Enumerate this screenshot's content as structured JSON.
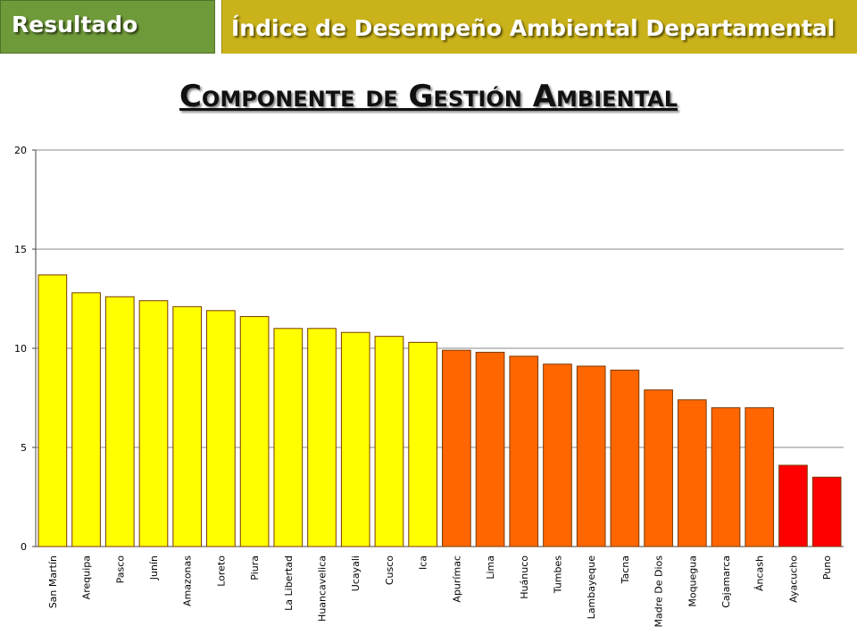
{
  "header": {
    "left_label": "Resultado",
    "right_label": "Índice de Desempeño Ambiental Departamental"
  },
  "colors": {
    "header_left_bg": "#6f9a3a",
    "header_right_bg": "#c9b21a",
    "high": "#ffff00",
    "mid": "#ff6600",
    "low": "#ff0000"
  },
  "chart_data": {
    "type": "bar",
    "title": "Componente de Gestión Ambiental",
    "xlabel": "",
    "ylabel": "",
    "ylim": [
      0,
      20
    ],
    "yticks": [
      0,
      5,
      10,
      15,
      20
    ],
    "grid": true,
    "categories": [
      "San Martín",
      "Arequipa",
      "Pasco",
      "Junín",
      "Amazonas",
      "Loreto",
      "Piura",
      "La Libertad",
      "Huancavelica",
      "Ucayali",
      "Cusco",
      "Ica",
      "Apurímac",
      "Lima",
      "Huánuco",
      "Tumbes",
      "Lambayeque",
      "Tacna",
      "Madre De Dios",
      "Moquegua",
      "Cajamarca",
      "Áncash",
      "Ayacucho",
      "Puno"
    ],
    "values": [
      13.7,
      12.8,
      12.6,
      12.4,
      12.1,
      11.9,
      11.6,
      11.0,
      11.0,
      10.8,
      10.6,
      10.3,
      9.9,
      9.8,
      9.6,
      9.2,
      9.1,
      8.9,
      7.9,
      7.4,
      7.0,
      7.0,
      4.1,
      3.5
    ],
    "bar_colors": [
      "#ffff00",
      "#ffff00",
      "#ffff00",
      "#ffff00",
      "#ffff00",
      "#ffff00",
      "#ffff00",
      "#ffff00",
      "#ffff00",
      "#ffff00",
      "#ffff00",
      "#ffff00",
      "#ff6600",
      "#ff6600",
      "#ff6600",
      "#ff6600",
      "#ff6600",
      "#ff6600",
      "#ff6600",
      "#ff6600",
      "#ff6600",
      "#ff6600",
      "#ff0000",
      "#ff0000"
    ]
  }
}
